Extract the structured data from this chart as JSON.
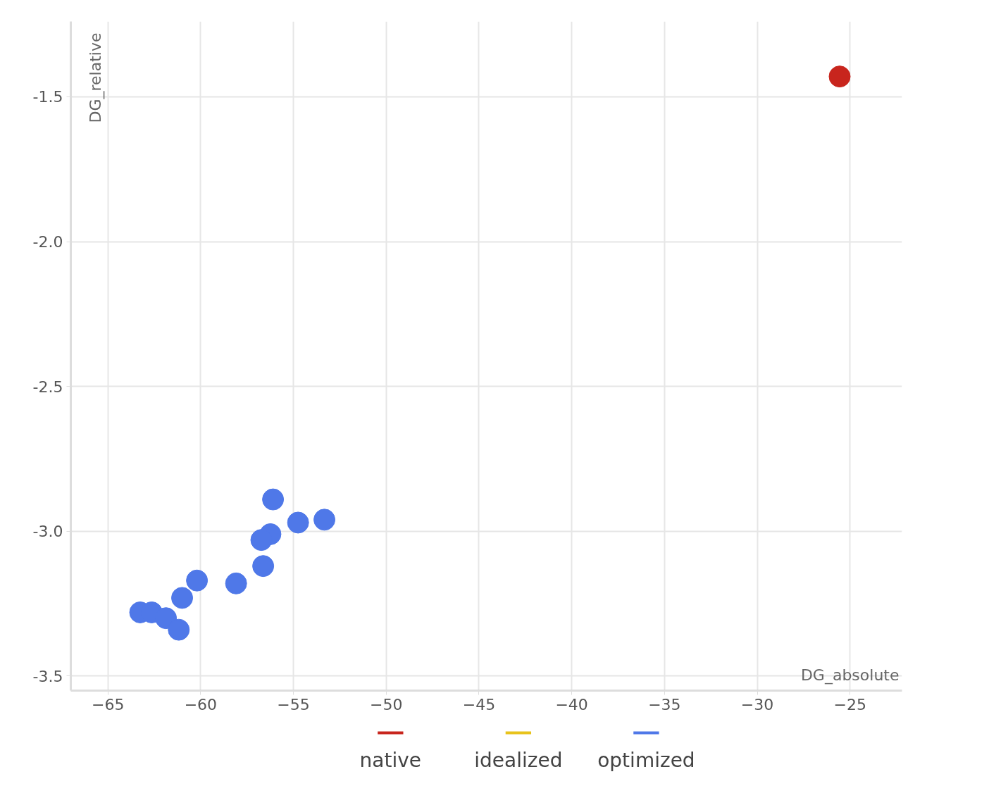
{
  "chart_data": {
    "type": "scatter",
    "xlabel": "DG_absolute",
    "ylabel": "DG_relative",
    "xlim": [
      -67,
      -22.2
    ],
    "ylim": [
      -3.55,
      -1.24
    ],
    "xticks": [
      -65,
      -60,
      -55,
      -50,
      -45,
      -40,
      -35,
      -30,
      -25
    ],
    "yticks": [
      {
        "value": -1.5,
        "label": "-1.5"
      },
      {
        "value": -2.0,
        "label": "-2.0"
      },
      {
        "value": -2.5,
        "label": "-2.5"
      },
      {
        "value": -3.0,
        "label": "-3.0"
      },
      {
        "value": -3.5,
        "label": "-3.5"
      }
    ],
    "grid": true,
    "legend": "bottom",
    "marker": "circle",
    "series": [
      {
        "name": "native",
        "color": "#c8251d",
        "x": [
          -25.56
        ],
        "values": [
          -1.43
        ]
      },
      {
        "name": "idealized",
        "color": "#e8c31c"
      },
      {
        "name": "optimized",
        "color": "#4f78e8",
        "x": [
          -56.1,
          -54.75,
          -53.33,
          -56.24,
          -56.73,
          -56.63,
          -58.09,
          -60.2,
          -61.0,
          -63.26,
          -62.64,
          -61.87,
          -61.18
        ],
        "values": [
          -2.89,
          -2.97,
          -2.96,
          -3.01,
          -3.03,
          -3.12,
          -3.18,
          -3.17,
          -3.23,
          -3.28,
          -3.28,
          -3.3,
          -3.34
        ]
      }
    ]
  }
}
